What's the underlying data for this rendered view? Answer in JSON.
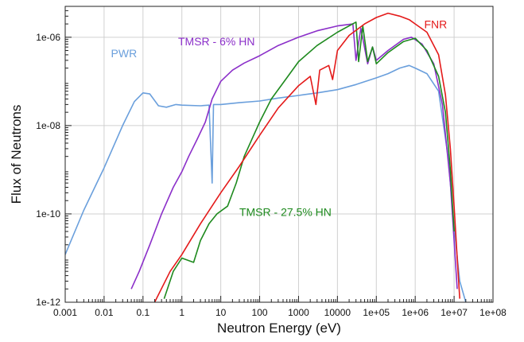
{
  "chart_data": {
    "type": "line",
    "xlabel": "Neutron Energy (eV)",
    "ylabel": "Flux of Neutrons",
    "x_scale": "log",
    "y_scale": "log",
    "xlim": [
      0.001,
      100000000
    ],
    "ylim": [
      1e-12,
      5e-06
    ],
    "grid": true,
    "x_ticks": [
      {
        "value": 0.001,
        "label": "0.001"
      },
      {
        "value": 0.01,
        "label": "0.01"
      },
      {
        "value": 0.1,
        "label": "0.1"
      },
      {
        "value": 1,
        "label": "1"
      },
      {
        "value": 10,
        "label": "10"
      },
      {
        "value": 100,
        "label": "100"
      },
      {
        "value": 1000,
        "label": "1000"
      },
      {
        "value": 10000,
        "label": "10000"
      },
      {
        "value": 100000,
        "label": "1e+05"
      },
      {
        "value": 1000000,
        "label": "1e+06"
      },
      {
        "value": 10000000,
        "label": "1e+07"
      },
      {
        "value": 100000000,
        "label": "1e+08"
      }
    ],
    "y_ticks": [
      {
        "value": 1e-12,
        "label": "1e-12"
      },
      {
        "value": 1e-10,
        "label": "1e-10"
      },
      {
        "value": 1e-08,
        "label": "1e-08"
      },
      {
        "value": 1e-06,
        "label": "1e-06"
      }
    ],
    "series": [
      {
        "name": "PWR",
        "color": "#6a9fdc",
        "label_at": [
          0.015,
          3.5e-07
        ],
        "points": [
          [
            0.001,
            1.2e-11
          ],
          [
            0.003,
            1.2e-10
          ],
          [
            0.01,
            1.1e-09
          ],
          [
            0.03,
            1e-08
          ],
          [
            0.06,
            3.5e-08
          ],
          [
            0.1,
            5.5e-08
          ],
          [
            0.15,
            5.2e-08
          ],
          [
            0.25,
            2.8e-08
          ],
          [
            0.4,
            2.6e-08
          ],
          [
            0.7,
            3e-08
          ],
          [
            1,
            2.9e-08
          ],
          [
            3,
            2.8e-08
          ],
          [
            5,
            2.9e-08
          ],
          [
            6,
            5e-10
          ],
          [
            6.5,
            3e-08
          ],
          [
            10,
            3e-08
          ],
          [
            30,
            3.3e-08
          ],
          [
            100,
            3.6e-08
          ],
          [
            300,
            4.2e-08
          ],
          [
            1000,
            4.8e-08
          ],
          [
            3000,
            5.5e-08
          ],
          [
            10000,
            6.5e-08
          ],
          [
            30000,
            8.5e-08
          ],
          [
            100000,
            1.2e-07
          ],
          [
            200000,
            1.5e-07
          ],
          [
            400000,
            2e-07
          ],
          [
            700000,
            2.3e-07
          ],
          [
            1000000,
            2e-07
          ],
          [
            2000000,
            1.5e-07
          ],
          [
            4000000,
            6e-08
          ],
          [
            7000000,
            2e-09
          ],
          [
            10000000,
            5e-11
          ],
          [
            14000000,
            3e-12
          ],
          [
            20000000,
            1e-12
          ]
        ]
      },
      {
        "name": "TMSR - 6% HN",
        "color": "#8b2fc9",
        "label_at": [
          0.8,
          6.5e-07
        ],
        "points": [
          [
            0.05,
            2e-12
          ],
          [
            0.08,
            5e-12
          ],
          [
            0.15,
            2e-11
          ],
          [
            0.3,
            1e-10
          ],
          [
            0.6,
            4e-10
          ],
          [
            1,
            9e-10
          ],
          [
            1.5,
            2e-09
          ],
          [
            2.5,
            5e-09
          ],
          [
            4,
            1.2e-08
          ],
          [
            6,
            4e-08
          ],
          [
            10,
            1e-07
          ],
          [
            20,
            1.8e-07
          ],
          [
            40,
            2.6e-07
          ],
          [
            100,
            3.8e-07
          ],
          [
            300,
            6.5e-07
          ],
          [
            1000,
            1e-06
          ],
          [
            3000,
            1.4e-06
          ],
          [
            10000,
            1.8e-06
          ],
          [
            25000,
            2e-06
          ],
          [
            30000,
            3e-07
          ],
          [
            40000,
            1.6e-06
          ],
          [
            60000,
            2.5e-07
          ],
          [
            80000,
            6e-07
          ],
          [
            100000,
            3e-07
          ],
          [
            200000,
            5e-07
          ],
          [
            500000,
            9e-07
          ],
          [
            800000,
            1e-06
          ],
          [
            1500000,
            7e-07
          ],
          [
            3000000,
            2.5e-07
          ],
          [
            5000000,
            3e-08
          ],
          [
            8000000,
            5e-10
          ],
          [
            12000000,
            2e-12
          ]
        ]
      },
      {
        "name": "TMSR - 27.5% HN",
        "color": "#1e8a1e",
        "label_at": [
          30,
          9e-11
        ],
        "points": [
          [
            0.35,
            1.2e-12
          ],
          [
            0.6,
            5e-12
          ],
          [
            1,
            1e-11
          ],
          [
            2,
            8e-12
          ],
          [
            3,
            2.5e-11
          ],
          [
            5,
            6e-11
          ],
          [
            8,
            1e-10
          ],
          [
            15,
            1.5e-10
          ],
          [
            25,
            5e-10
          ],
          [
            40,
            2e-09
          ],
          [
            70,
            6e-09
          ],
          [
            100,
            1.2e-08
          ],
          [
            200,
            4e-08
          ],
          [
            500,
            1.2e-07
          ],
          [
            1000,
            2.8e-07
          ],
          [
            3000,
            6.5e-07
          ],
          [
            10000,
            1.3e-06
          ],
          [
            30000,
            2.2e-06
          ],
          [
            35000,
            2.8e-07
          ],
          [
            45000,
            1.8e-06
          ],
          [
            60000,
            2.8e-07
          ],
          [
            80000,
            6e-07
          ],
          [
            100000,
            2.5e-07
          ],
          [
            200000,
            4.5e-07
          ],
          [
            500000,
            8e-07
          ],
          [
            1000000,
            9.5e-07
          ],
          [
            2000000,
            5e-07
          ],
          [
            4000000,
            1.3e-07
          ],
          [
            6000000,
            2e-08
          ],
          [
            8000000,
            1e-09
          ],
          [
            10000000,
            4e-11
          ]
        ]
      },
      {
        "name": "FNR",
        "color": "#e41a1a",
        "label_at": [
          1700000,
          1.6e-06
        ],
        "points": [
          [
            0.2,
            1e-12
          ],
          [
            0.5,
            5e-12
          ],
          [
            1,
            1.2e-11
          ],
          [
            3,
            6e-11
          ],
          [
            10,
            3e-10
          ],
          [
            30,
            1.2e-09
          ],
          [
            100,
            6e-09
          ],
          [
            300,
            2.5e-08
          ],
          [
            1000,
            8e-08
          ],
          [
            2000,
            1.3e-07
          ],
          [
            2800,
            3e-08
          ],
          [
            3500,
            1.8e-07
          ],
          [
            6000,
            2.3e-07
          ],
          [
            7500,
            1.1e-07
          ],
          [
            10000,
            5e-07
          ],
          [
            20000,
            1.1e-06
          ],
          [
            50000,
            2e-06
          ],
          [
            100000,
            2.8e-06
          ],
          [
            200000,
            3.5e-06
          ],
          [
            400000,
            3e-06
          ],
          [
            700000,
            2.5e-06
          ],
          [
            1000000,
            2e-06
          ],
          [
            2000000,
            1.3e-06
          ],
          [
            4000000,
            4e-07
          ],
          [
            6000000,
            5e-08
          ],
          [
            8000000,
            3e-09
          ],
          [
            10000000,
            1.5e-10
          ],
          [
            12000000,
            1e-11
          ],
          [
            14000000,
            1.2e-12
          ]
        ]
      }
    ]
  }
}
